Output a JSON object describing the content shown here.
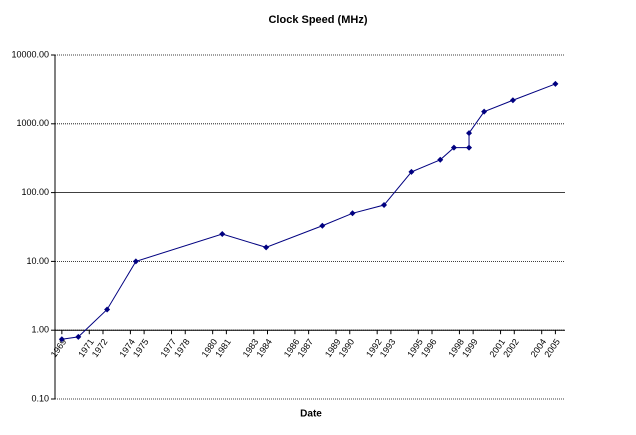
{
  "chart_data": {
    "type": "line",
    "title": "Clock Speed (MHz)",
    "x_label": "Date",
    "x": [
      1969.0,
      1970.2,
      1972.3,
      1974.4,
      1980.7,
      1983.9,
      1988.0,
      1990.2,
      1992.5,
      1994.5,
      1996.6,
      1997.6,
      1998.7,
      1998.7,
      1999.8,
      2001.9,
      2005.0
    ],
    "series": [
      {
        "name": "Clock Speed (MHz)",
        "color": "#000080",
        "values": [
          0.74,
          0.8,
          2,
          10,
          25,
          16,
          33,
          50,
          66,
          200,
          300,
          450,
          450,
          733,
          1500,
          2200,
          3800
        ]
      }
    ],
    "xlim": [
      1968.5,
      2005.7
    ],
    "xticks": [
      1969,
      1971,
      1972,
      1974,
      1975,
      1977,
      1978,
      1980,
      1981,
      1983,
      1984,
      1986,
      1987,
      1989,
      1990,
      1992,
      1993,
      1995,
      1996,
      1998,
      1999,
      2001,
      2002,
      2004,
      2005
    ],
    "ylim": [
      0.1,
      10000
    ],
    "y_log": true,
    "x_axis_crosses": 1,
    "yticks": [
      {
        "value": 0.1,
        "label": "0.10"
      },
      {
        "value": 1,
        "label": "1.00"
      },
      {
        "value": 10,
        "label": "10.00"
      },
      {
        "value": 100,
        "label": "100.00"
      },
      {
        "value": 1000,
        "label": "1000.00"
      },
      {
        "value": 10000,
        "label": "10000.00"
      }
    ],
    "grid": true
  }
}
